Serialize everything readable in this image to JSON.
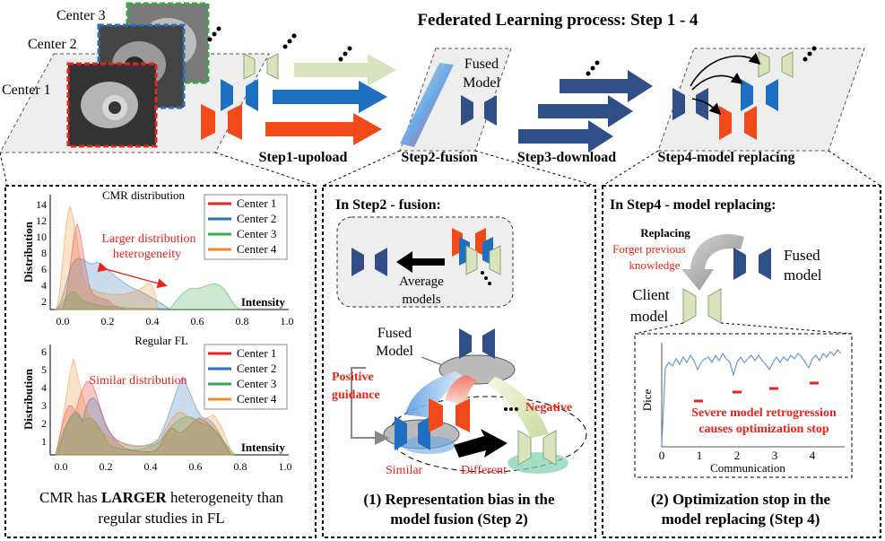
{
  "top": {
    "title": "Federated Learning process: Step 1 - 4",
    "centers": [
      "Center 3",
      "Center 2",
      "Center 1"
    ],
    "fused_model_label": [
      "Fused",
      "Model"
    ],
    "steps": [
      "Step1-upoload",
      "Step2-fusion",
      "Step3-download",
      "Step4-model replacing"
    ]
  },
  "left_panel": {
    "chart1": {
      "title": "CMR distribution",
      "ylabel": "Distribution",
      "xlabel": "Intensity",
      "annotation": [
        "Larger distribution",
        "heterogeneity"
      ],
      "yticks": [
        "14",
        "12",
        "10",
        "8",
        "6",
        "4",
        "2"
      ],
      "xticks": [
        "0.0",
        "0.2",
        "0.4",
        "0.6",
        "0.8",
        "1.0"
      ]
    },
    "chart2": {
      "title": "Regular FL",
      "ylabel": "Distribution",
      "xlabel": "Intensity",
      "annotation": "Similar distribution",
      "yticks": [
        "6",
        "5",
        "4",
        "3",
        "2",
        "1"
      ],
      "xticks": [
        "0.0",
        "0.2",
        "0.4",
        "0.6",
        "0.8",
        "1.0"
      ]
    },
    "legend": [
      "Center 1",
      "Center 2",
      "Center 3",
      "Center 4"
    ],
    "colors": [
      "#e8231a",
      "#2a6fb8",
      "#3aa84a",
      "#f08a2a"
    ],
    "caption": [
      "CMR has ",
      "LARGER",
      " heterogeneity than",
      "regular studies in FL"
    ]
  },
  "middle_panel": {
    "heading": "In Step2 - fusion:",
    "average_label": [
      "Average",
      "models"
    ],
    "fused_label": [
      "Fused",
      "Model"
    ],
    "positive": [
      "Positive",
      "guidance"
    ],
    "negative": "Negative",
    "similar": "Similar",
    "different": "Different",
    "caption": [
      "(1) Representation bias in the",
      "model fusion (Step 2)"
    ]
  },
  "right_panel": {
    "heading": "In Step4 - model replacing:",
    "replacing": "Replacing",
    "forget": [
      "Forget previous",
      "knowledge"
    ],
    "fused": [
      "Fused",
      "model"
    ],
    "client": [
      "Client",
      "model"
    ],
    "chart": {
      "ylabel": "Dice",
      "xlabel": "Communication",
      "xticks": [
        "0",
        "1",
        "2",
        "3",
        "4"
      ],
      "annotation": [
        "Severe model retrogression",
        "causes optimization stop"
      ]
    },
    "caption": [
      "(2) Optimization stop in the",
      "model replacing (Step 4)"
    ]
  }
}
